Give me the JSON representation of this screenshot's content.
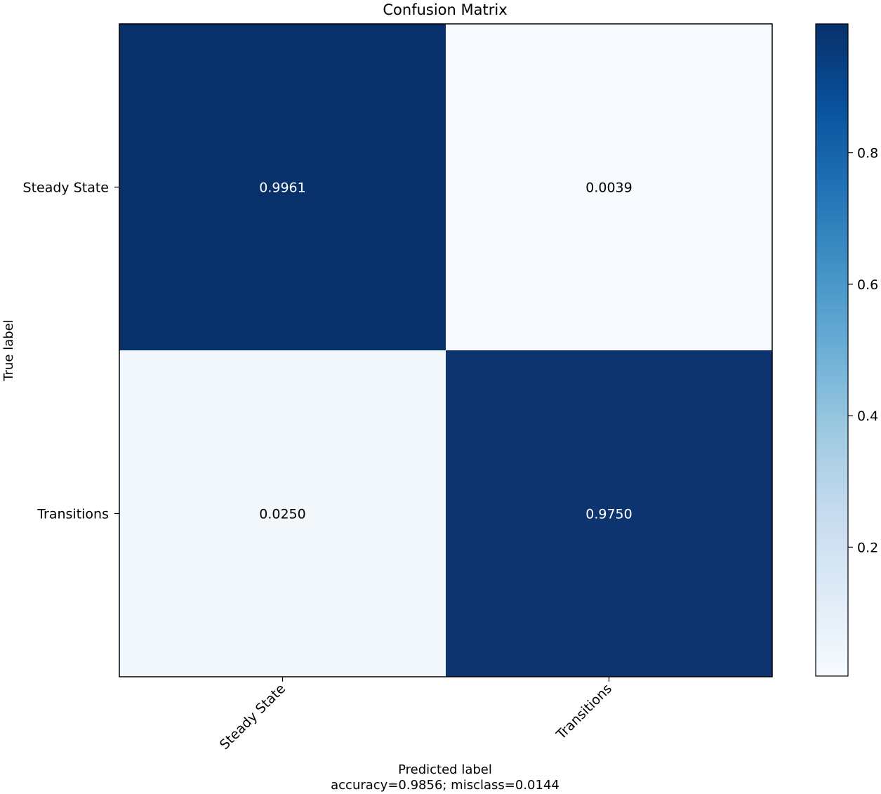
{
  "chart_data": {
    "type": "heatmap",
    "title": "Confusion Matrix",
    "xlabel": "Predicted label",
    "xlabel_note": "accuracy=0.9856; misclass=0.0144",
    "ylabel": "True label",
    "row_labels": [
      "Steady State",
      "Transitions"
    ],
    "col_labels": [
      "Steady State",
      "Transitions"
    ],
    "matrix": [
      [
        0.9961,
        0.0039
      ],
      [
        0.025,
        0.975
      ]
    ],
    "cell_text": [
      [
        "0.9961",
        "0.0039"
      ],
      [
        "0.0250",
        "0.9750"
      ]
    ],
    "colormap": "Blues",
    "color_low": "#f7fbff",
    "color_high": "#08306b",
    "colorbar_range": [
      0.0039,
      0.9961
    ],
    "colorbar_ticks": [
      0.2,
      0.4,
      0.6,
      0.8
    ],
    "colorbar_tick_labels": [
      "0.2",
      "0.4",
      "0.6",
      "0.8"
    ],
    "grid": false
  }
}
